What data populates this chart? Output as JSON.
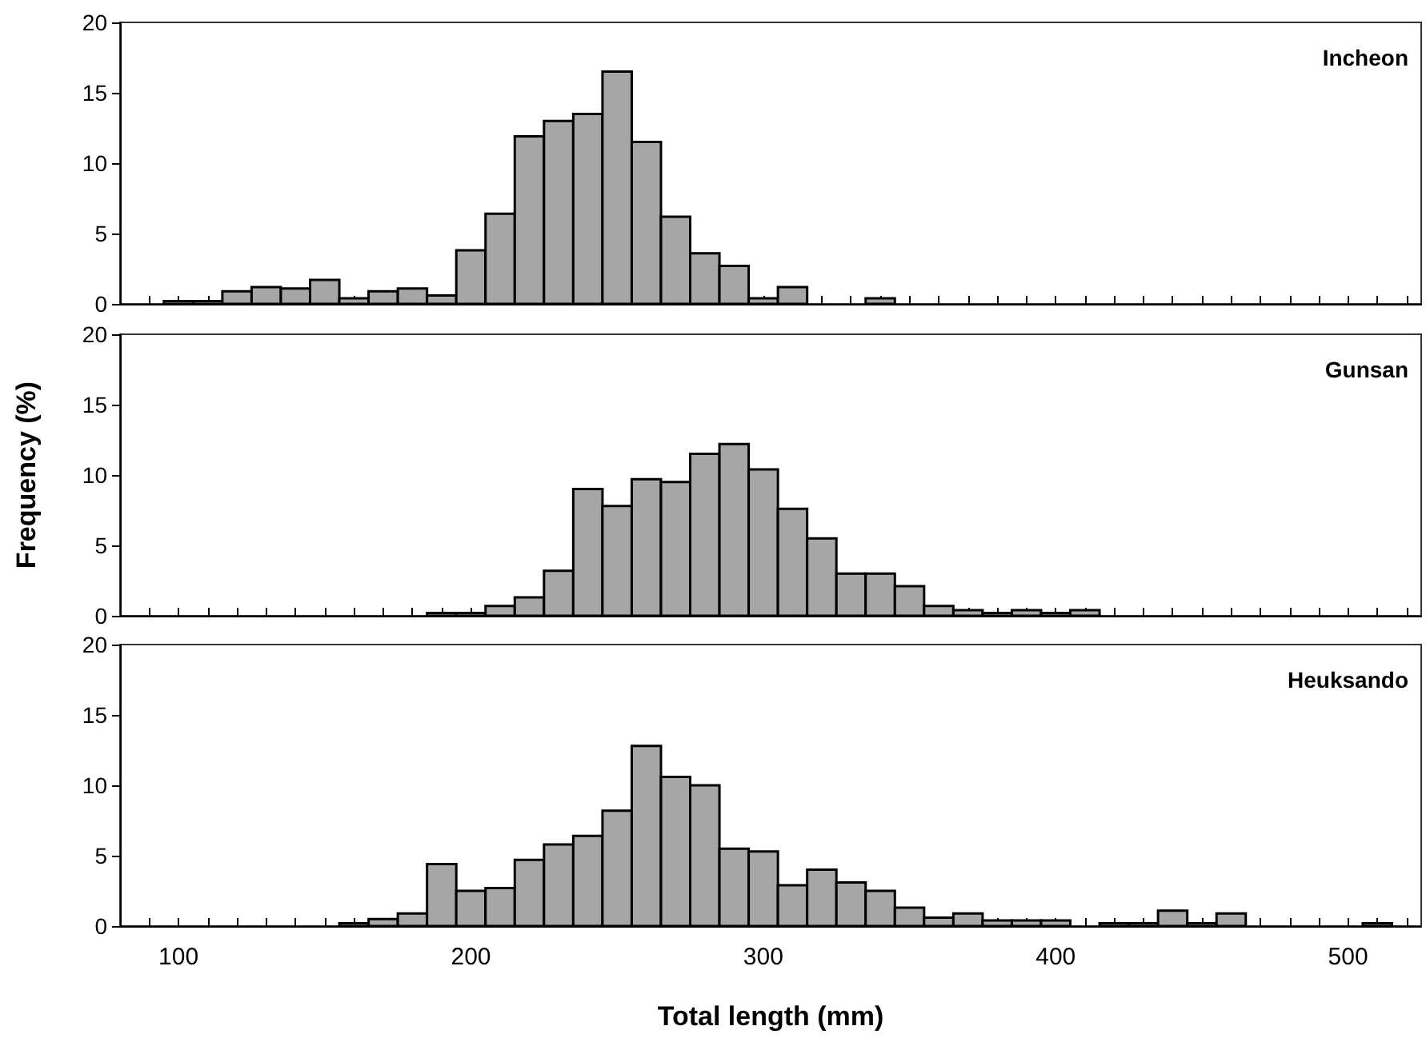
{
  "chart_data": [
    {
      "type": "histogram",
      "title": "Incheon",
      "bins": [
        95,
        105,
        115,
        125,
        135,
        145,
        155,
        165,
        175,
        185,
        195,
        205,
        215,
        225,
        235,
        245,
        255,
        265,
        275,
        285,
        295,
        305,
        315,
        325,
        335,
        345
      ],
      "values": [
        0.2,
        0.2,
        0.9,
        1.2,
        1.1,
        1.7,
        0.4,
        0.9,
        1.1,
        0.6,
        3.8,
        6.4,
        11.9,
        13.0,
        13.5,
        16.5,
        11.5,
        6.2,
        3.6,
        2.7,
        0.4,
        1.2,
        0,
        0,
        0.4
      ],
      "color": "#a6a6a6",
      "xlim": [
        80,
        525
      ],
      "ylim": [
        0,
        20
      ],
      "yticks": [
        0,
        5,
        10,
        15,
        20
      ],
      "xticks": [
        {
          "value": 90,
          "label": null
        },
        100,
        {
          "value": 110,
          "label": null
        },
        {
          "value": 120,
          "label": null
        },
        {
          "value": 130,
          "label": null
        },
        {
          "value": 140,
          "label": null
        },
        {
          "value": 150,
          "label": null
        },
        {
          "value": 160,
          "label": null
        },
        {
          "value": 170,
          "label": null
        },
        {
          "value": 180,
          "label": null
        },
        {
          "value": 190,
          "label": null
        },
        200,
        {
          "value": 210,
          "label": null
        },
        {
          "value": 220,
          "label": null
        },
        {
          "value": 230,
          "label": null
        },
        {
          "value": 240,
          "label": null
        },
        {
          "value": 250,
          "label": null
        },
        {
          "value": 260,
          "label": null
        },
        {
          "value": 270,
          "label": null
        },
        {
          "value": 280,
          "label": null
        },
        {
          "value": 290,
          "label": null
        },
        300,
        {
          "value": 310,
          "label": null
        },
        {
          "value": 320,
          "label": null
        },
        {
          "value": 330,
          "label": null
        },
        {
          "value": 340,
          "label": null
        },
        {
          "value": 350,
          "label": null
        },
        {
          "value": 360,
          "label": null
        },
        {
          "value": 370,
          "label": null
        },
        {
          "value": 380,
          "label": null
        },
        {
          "value": 390,
          "label": null
        },
        400,
        {
          "value": 410,
          "label": null
        },
        {
          "value": 420,
          "label": null
        },
        {
          "value": 430,
          "label": null
        },
        {
          "value": 440,
          "label": null
        },
        {
          "value": 450,
          "label": null
        },
        {
          "value": 460,
          "label": null
        },
        {
          "value": 470,
          "label": null
        },
        {
          "value": 480,
          "label": null
        },
        {
          "value": 490,
          "label": null
        },
        500,
        {
          "value": 510,
          "label": null
        },
        {
          "value": 520,
          "label": null
        }
      ],
      "tick_labels": "y"
    },
    {
      "type": "histogram",
      "title": "Gunsan",
      "ylabel": "Frequency (%)",
      "bins": [
        185,
        195,
        205,
        215,
        225,
        235,
        245,
        255,
        265,
        275,
        285,
        295,
        305,
        315,
        325,
        335,
        345,
        355,
        365,
        375,
        385,
        395,
        405,
        415
      ],
      "values": [
        0.2,
        0.2,
        0.7,
        1.3,
        3.2,
        9.0,
        7.8,
        9.7,
        9.5,
        11.5,
        12.2,
        10.4,
        7.6,
        5.5,
        3.0,
        3.0,
        2.1,
        0.7,
        0.4,
        0.2,
        0.4,
        0.2,
        0.4
      ],
      "color": "#a6a6a6",
      "xlim": [
        80,
        525
      ],
      "ylim": [
        0,
        20
      ],
      "yticks": [
        0,
        5,
        10,
        15,
        20
      ],
      "xticks": [
        {
          "value": 90,
          "label": null
        },
        100,
        {
          "value": 110,
          "label": null
        },
        {
          "value": 120,
          "label": null
        },
        {
          "value": 130,
          "label": null
        },
        {
          "value": 140,
          "label": null
        },
        {
          "value": 150,
          "label": null
        },
        {
          "value": 160,
          "label": null
        },
        {
          "value": 170,
          "label": null
        },
        {
          "value": 180,
          "label": null
        },
        {
          "value": 190,
          "label": null
        },
        200,
        {
          "value": 210,
          "label": null
        },
        {
          "value": 220,
          "label": null
        },
        {
          "value": 230,
          "label": null
        },
        {
          "value": 240,
          "label": null
        },
        {
          "value": 250,
          "label": null
        },
        {
          "value": 260,
          "label": null
        },
        {
          "value": 270,
          "label": null
        },
        {
          "value": 280,
          "label": null
        },
        {
          "value": 290,
          "label": null
        },
        300,
        {
          "value": 310,
          "label": null
        },
        {
          "value": 320,
          "label": null
        },
        {
          "value": 330,
          "label": null
        },
        {
          "value": 340,
          "label": null
        },
        {
          "value": 350,
          "label": null
        },
        {
          "value": 360,
          "label": null
        },
        {
          "value": 370,
          "label": null
        },
        {
          "value": 380,
          "label": null
        },
        {
          "value": 390,
          "label": null
        },
        400,
        {
          "value": 410,
          "label": null
        },
        {
          "value": 420,
          "label": null
        },
        {
          "value": 430,
          "label": null
        },
        {
          "value": 440,
          "label": null
        },
        {
          "value": 450,
          "label": null
        },
        {
          "value": 460,
          "label": null
        },
        {
          "value": 470,
          "label": null
        },
        {
          "value": 480,
          "label": null
        },
        {
          "value": 490,
          "label": null
        },
        500,
        {
          "value": 510,
          "label": null
        },
        {
          "value": 520,
          "label": null
        }
      ],
      "tick_labels": "y"
    },
    {
      "type": "histogram",
      "title": "Heuksando",
      "xlabel": "Total length (mm)",
      "bins": [
        155,
        165,
        175,
        185,
        195,
        205,
        215,
        225,
        235,
        245,
        255,
        265,
        275,
        285,
        295,
        305,
        315,
        325,
        335,
        345,
        355,
        365,
        375,
        385,
        395,
        405,
        415,
        425,
        435,
        445,
        455,
        465,
        475,
        485,
        495,
        505,
        515
      ],
      "values": [
        0.2,
        0.5,
        0.9,
        4.4,
        2.5,
        2.7,
        4.7,
        5.8,
        6.4,
        8.2,
        12.8,
        10.6,
        10.0,
        5.5,
        5.3,
        2.9,
        4.0,
        3.1,
        2.5,
        1.3,
        0.6,
        0.9,
        0.4,
        0.4,
        0.4,
        0,
        0.2,
        0.2,
        1.1,
        0.2,
        0.9,
        0,
        0,
        0,
        0,
        0.2
      ],
      "color": "#a6a6a6",
      "xlim": [
        80,
        525
      ],
      "ylim": [
        0,
        20
      ],
      "yticks": [
        0,
        5,
        10,
        15,
        20
      ],
      "xticks": [
        {
          "value": 90,
          "label": null
        },
        100,
        {
          "value": 110,
          "label": null
        },
        {
          "value": 120,
          "label": null
        },
        {
          "value": 130,
          "label": null
        },
        {
          "value": 140,
          "label": null
        },
        {
          "value": 150,
          "label": null
        },
        {
          "value": 160,
          "label": null
        },
        {
          "value": 170,
          "label": null
        },
        {
          "value": 180,
          "label": null
        },
        {
          "value": 190,
          "label": null
        },
        200,
        {
          "value": 210,
          "label": null
        },
        {
          "value": 220,
          "label": null
        },
        {
          "value": 230,
          "label": null
        },
        {
          "value": 240,
          "label": null
        },
        {
          "value": 250,
          "label": null
        },
        {
          "value": 260,
          "label": null
        },
        {
          "value": 270,
          "label": null
        },
        {
          "value": 280,
          "label": null
        },
        {
          "value": 290,
          "label": null
        },
        300,
        {
          "value": 310,
          "label": null
        },
        {
          "value": 320,
          "label": null
        },
        {
          "value": 330,
          "label": null
        },
        {
          "value": 340,
          "label": null
        },
        {
          "value": 350,
          "label": null
        },
        {
          "value": 360,
          "label": null
        },
        {
          "value": 370,
          "label": null
        },
        {
          "value": 380,
          "label": null
        },
        {
          "value": 390,
          "label": null
        },
        400,
        {
          "value": 410,
          "label": null
        },
        {
          "value": 420,
          "label": null
        },
        {
          "value": 430,
          "label": null
        },
        {
          "value": 440,
          "label": null
        },
        {
          "value": 450,
          "label": null
        },
        {
          "value": 460,
          "label": null
        },
        {
          "value": 470,
          "label": null
        },
        {
          "value": 480,
          "label": null
        },
        {
          "value": 490,
          "label": null
        },
        500,
        {
          "value": 510,
          "label": null
        },
        {
          "value": 520,
          "label": null
        }
      ]
    }
  ]
}
